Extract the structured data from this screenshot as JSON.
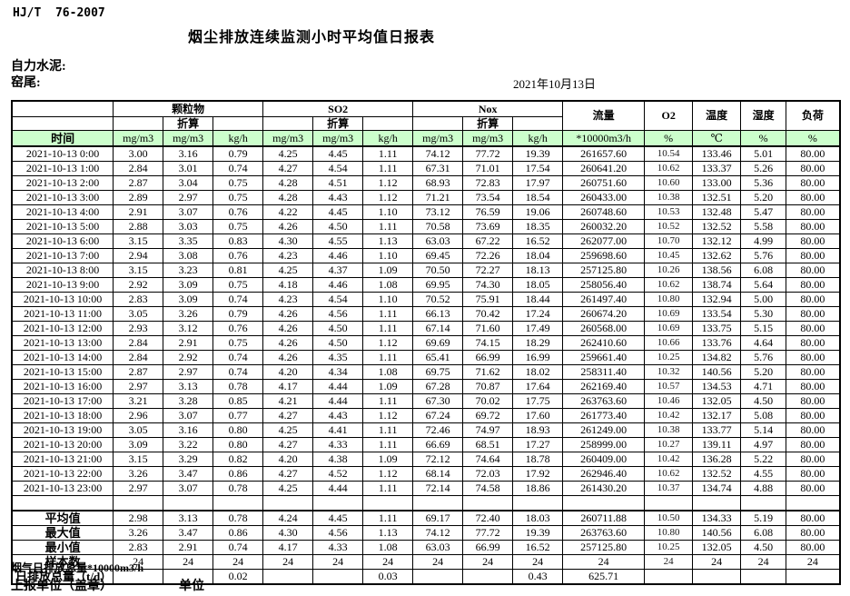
{
  "meta": {
    "standard": "HJ/T  76-2007",
    "title": "烟尘排放连续监测小时平均值日报表",
    "company": "自力水泥:",
    "station": "窑尾:",
    "date": "2021年10月13日"
  },
  "table": {
    "time_header": "时间",
    "groups": [
      {
        "label": "颗粒物",
        "sub": "折算"
      },
      {
        "label": "SO2",
        "sub": "折算"
      },
      {
        "label": "Nox",
        "sub": "折算"
      }
    ],
    "group_units": [
      "mg/m3",
      "mg/m3",
      "kg/h"
    ],
    "single_cols": [
      {
        "label": "流量",
        "unit": "*10000m3/h"
      },
      {
        "label": "O2",
        "unit": "%"
      },
      {
        "label": "温度",
        "unit": "℃"
      },
      {
        "label": "湿度",
        "unit": "%"
      },
      {
        "label": "负荷",
        "unit": "%"
      }
    ],
    "rows": [
      {
        "time": "2021-10-13 0:00",
        "values": [
          "3.00",
          "3.16",
          "0.79",
          "4.25",
          "4.45",
          "1.11",
          "74.12",
          "77.72",
          "19.39",
          "261657.60",
          "10.54",
          "133.46",
          "5.01",
          "80.00"
        ]
      },
      {
        "time": "2021-10-13 1:00",
        "values": [
          "2.84",
          "3.01",
          "0.74",
          "4.27",
          "4.54",
          "1.11",
          "67.31",
          "71.01",
          "17.54",
          "260641.20",
          "10.62",
          "133.37",
          "5.26",
          "80.00"
        ]
      },
      {
        "time": "2021-10-13 2:00",
        "values": [
          "2.87",
          "3.04",
          "0.75",
          "4.28",
          "4.51",
          "1.12",
          "68.93",
          "72.83",
          "17.97",
          "260751.60",
          "10.60",
          "133.00",
          "5.36",
          "80.00"
        ]
      },
      {
        "time": "2021-10-13 3:00",
        "values": [
          "2.89",
          "2.97",
          "0.75",
          "4.28",
          "4.43",
          "1.12",
          "71.21",
          "73.54",
          "18.54",
          "260433.00",
          "10.38",
          "132.51",
          "5.20",
          "80.00"
        ]
      },
      {
        "time": "2021-10-13 4:00",
        "values": [
          "2.91",
          "3.07",
          "0.76",
          "4.22",
          "4.45",
          "1.10",
          "73.12",
          "76.59",
          "19.06",
          "260748.60",
          "10.53",
          "132.48",
          "5.47",
          "80.00"
        ]
      },
      {
        "time": "2021-10-13 5:00",
        "values": [
          "2.88",
          "3.03",
          "0.75",
          "4.26",
          "4.50",
          "1.11",
          "70.58",
          "73.69",
          "18.35",
          "260032.20",
          "10.52",
          "132.52",
          "5.58",
          "80.00"
        ]
      },
      {
        "time": "2021-10-13 6:00",
        "values": [
          "3.15",
          "3.35",
          "0.83",
          "4.30",
          "4.55",
          "1.13",
          "63.03",
          "67.22",
          "16.52",
          "262077.00",
          "10.70",
          "132.12",
          "4.99",
          "80.00"
        ]
      },
      {
        "time": "2021-10-13 7:00",
        "values": [
          "2.94",
          "3.08",
          "0.76",
          "4.23",
          "4.46",
          "1.10",
          "69.45",
          "72.26",
          "18.04",
          "259698.60",
          "10.45",
          "132.62",
          "5.76",
          "80.00"
        ]
      },
      {
        "time": "2021-10-13 8:00",
        "values": [
          "3.15",
          "3.23",
          "0.81",
          "4.25",
          "4.37",
          "1.09",
          "70.50",
          "72.27",
          "18.13",
          "257125.80",
          "10.26",
          "138.56",
          "6.08",
          "80.00"
        ]
      },
      {
        "time": "2021-10-13 9:00",
        "values": [
          "2.92",
          "3.09",
          "0.75",
          "4.18",
          "4.46",
          "1.08",
          "69.95",
          "74.30",
          "18.05",
          "258056.40",
          "10.62",
          "138.74",
          "5.64",
          "80.00"
        ]
      },
      {
        "time": "2021-10-13 10:00",
        "values": [
          "2.83",
          "3.09",
          "0.74",
          "4.23",
          "4.54",
          "1.10",
          "70.52",
          "75.91",
          "18.44",
          "261497.40",
          "10.80",
          "132.94",
          "5.00",
          "80.00"
        ]
      },
      {
        "time": "2021-10-13 11:00",
        "values": [
          "3.05",
          "3.26",
          "0.79",
          "4.26",
          "4.56",
          "1.11",
          "66.13",
          "70.42",
          "17.24",
          "260674.20",
          "10.69",
          "133.54",
          "5.30",
          "80.00"
        ]
      },
      {
        "time": "2021-10-13 12:00",
        "values": [
          "2.93",
          "3.12",
          "0.76",
          "4.26",
          "4.50",
          "1.11",
          "67.14",
          "71.60",
          "17.49",
          "260568.00",
          "10.69",
          "133.75",
          "5.15",
          "80.00"
        ]
      },
      {
        "time": "2021-10-13 13:00",
        "values": [
          "2.84",
          "2.91",
          "0.75",
          "4.26",
          "4.50",
          "1.12",
          "69.69",
          "74.15",
          "18.29",
          "262410.60",
          "10.66",
          "133.76",
          "4.64",
          "80.00"
        ]
      },
      {
        "time": "2021-10-13 14:00",
        "values": [
          "2.84",
          "2.92",
          "0.74",
          "4.26",
          "4.35",
          "1.11",
          "65.41",
          "66.99",
          "16.99",
          "259661.40",
          "10.25",
          "134.82",
          "5.76",
          "80.00"
        ]
      },
      {
        "time": "2021-10-13 15:00",
        "values": [
          "2.87",
          "2.97",
          "0.74",
          "4.20",
          "4.34",
          "1.08",
          "69.75",
          "71.62",
          "18.02",
          "258311.40",
          "10.32",
          "140.56",
          "5.20",
          "80.00"
        ]
      },
      {
        "time": "2021-10-13 16:00",
        "values": [
          "2.97",
          "3.13",
          "0.78",
          "4.17",
          "4.44",
          "1.09",
          "67.28",
          "70.87",
          "17.64",
          "262169.40",
          "10.57",
          "134.53",
          "4.71",
          "80.00"
        ]
      },
      {
        "time": "2021-10-13 17:00",
        "values": [
          "3.21",
          "3.28",
          "0.85",
          "4.21",
          "4.44",
          "1.11",
          "67.30",
          "70.02",
          "17.75",
          "263763.60",
          "10.46",
          "132.05",
          "4.50",
          "80.00"
        ]
      },
      {
        "time": "2021-10-13 18:00",
        "values": [
          "2.96",
          "3.07",
          "0.77",
          "4.27",
          "4.43",
          "1.12",
          "67.24",
          "69.72",
          "17.60",
          "261773.40",
          "10.42",
          "132.17",
          "5.08",
          "80.00"
        ]
      },
      {
        "time": "2021-10-13 19:00",
        "values": [
          "3.05",
          "3.16",
          "0.80",
          "4.25",
          "4.41",
          "1.11",
          "72.46",
          "74.97",
          "18.93",
          "261249.00",
          "10.38",
          "133.77",
          "5.14",
          "80.00"
        ]
      },
      {
        "time": "2021-10-13 20:00",
        "values": [
          "3.09",
          "3.22",
          "0.80",
          "4.27",
          "4.33",
          "1.11",
          "66.69",
          "68.51",
          "17.27",
          "258999.00",
          "10.27",
          "139.11",
          "4.97",
          "80.00"
        ]
      },
      {
        "time": "2021-10-13 21:00",
        "values": [
          "3.15",
          "3.29",
          "0.82",
          "4.20",
          "4.38",
          "1.09",
          "72.12",
          "74.64",
          "18.78",
          "260409.00",
          "10.42",
          "136.28",
          "5.22",
          "80.00"
        ]
      },
      {
        "time": "2021-10-13 22:00",
        "values": [
          "3.26",
          "3.47",
          "0.86",
          "4.27",
          "4.52",
          "1.12",
          "68.14",
          "72.03",
          "17.92",
          "262946.40",
          "10.62",
          "132.52",
          "4.55",
          "80.00"
        ]
      },
      {
        "time": "2021-10-13 23:00",
        "values": [
          "2.97",
          "3.07",
          "0.78",
          "4.25",
          "4.44",
          "1.11",
          "72.14",
          "74.58",
          "18.86",
          "261430.20",
          "10.37",
          "134.74",
          "4.88",
          "80.00"
        ]
      }
    ],
    "summary": [
      {
        "label": "平均值",
        "values": [
          "2.98",
          "3.13",
          "0.78",
          "4.24",
          "4.45",
          "1.11",
          "69.17",
          "72.40",
          "18.03",
          "260711.88",
          "10.50",
          "134.33",
          "5.19",
          "80.00"
        ]
      },
      {
        "label": "最大值",
        "values": [
          "3.26",
          "3.47",
          "0.86",
          "4.30",
          "4.56",
          "1.13",
          "74.12",
          "77.72",
          "19.39",
          "263763.60",
          "10.80",
          "140.56",
          "6.08",
          "80.00"
        ]
      },
      {
        "label": "最小值",
        "values": [
          "2.83",
          "2.91",
          "0.74",
          "4.17",
          "4.33",
          "1.08",
          "63.03",
          "66.99",
          "16.52",
          "257125.80",
          "10.25",
          "132.05",
          "4.50",
          "80.00"
        ]
      },
      {
        "label": "样本数",
        "values": [
          "24",
          "24",
          "24",
          "24",
          "24",
          "24",
          "24",
          "24",
          "24",
          "24",
          "24",
          "24",
          "24",
          "24"
        ]
      },
      {
        "label": "日排放总量（t/d）",
        "values": [
          "",
          "",
          "0.02",
          "",
          "",
          "0.03",
          "",
          "",
          "0.43",
          "625.71",
          "",
          "",
          "",
          ""
        ]
      }
    ]
  },
  "footer": {
    "note": "烟气日排放总量*10000m3/h",
    "report_unit_label": "上报单位（盖章）",
    "unit_label": "单位"
  }
}
